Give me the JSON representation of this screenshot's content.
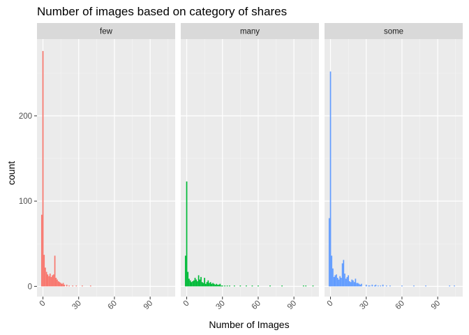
{
  "chart_data": {
    "type": "bar",
    "title": "Number of images based on category of shares",
    "xlabel": "Number of Images",
    "ylabel": "count",
    "xlim": [
      -5,
      111
    ],
    "ylim": [
      -12,
      290
    ],
    "x_ticks": [
      0,
      30,
      60,
      90
    ],
    "y_ticks": [
      0,
      100,
      200
    ],
    "x_tick_labels": [
      "0",
      "30",
      "60",
      "90"
    ],
    "y_tick_labels": [
      "0",
      "100",
      "200"
    ],
    "grid": true,
    "legend": "none",
    "facet_by": "category of shares",
    "bin_width": 1,
    "panels": [
      {
        "name": "few",
        "color": "#F8766D",
        "x": [
          -1,
          0,
          1,
          2,
          3,
          4,
          5,
          6,
          7,
          8,
          9,
          10,
          11,
          12,
          13,
          14,
          15,
          16,
          17,
          18,
          20,
          22,
          25,
          28,
          33,
          40
        ],
        "values": [
          84,
          276,
          37,
          22,
          17,
          14,
          12,
          15,
          11,
          13,
          14,
          36,
          10,
          8,
          6,
          5,
          4,
          3,
          4,
          2,
          2,
          1,
          1,
          1,
          1,
          1
        ]
      },
      {
        "name": "many",
        "color": "#00BA38",
        "x": [
          -1,
          0,
          1,
          2,
          3,
          4,
          5,
          6,
          7,
          8,
          9,
          10,
          11,
          12,
          13,
          14,
          15,
          16,
          17,
          18,
          19,
          20,
          21,
          22,
          23,
          24,
          25,
          26,
          27,
          28,
          29,
          30,
          32,
          34,
          36,
          40,
          45,
          50,
          55,
          60,
          70,
          80,
          98,
          100,
          106
        ],
        "values": [
          36,
          123,
          17,
          9,
          7,
          5,
          6,
          7,
          10,
          8,
          6,
          13,
          8,
          11,
          5,
          4,
          10,
          3,
          5,
          7,
          4,
          5,
          3,
          4,
          3,
          2,
          3,
          2,
          2,
          3,
          1,
          1,
          1,
          1,
          1,
          1,
          1,
          1,
          1,
          1,
          1,
          1,
          1,
          1,
          1
        ]
      },
      {
        "name": "some",
        "color": "#619CFF",
        "x": [
          -1,
          0,
          1,
          2,
          3,
          4,
          5,
          6,
          7,
          8,
          9,
          10,
          11,
          12,
          13,
          14,
          15,
          16,
          17,
          18,
          19,
          20,
          21,
          22,
          23,
          24,
          25,
          26,
          30,
          32,
          33,
          35,
          37,
          38,
          40,
          42,
          44,
          47,
          50,
          60,
          70,
          80,
          100,
          104
        ],
        "values": [
          80,
          252,
          36,
          21,
          11,
          13,
          14,
          10,
          8,
          12,
          10,
          27,
          31,
          15,
          9,
          11,
          13,
          6,
          5,
          8,
          7,
          5,
          9,
          4,
          4,
          3,
          2,
          3,
          2,
          1,
          1,
          2,
          1,
          2,
          1,
          1,
          2,
          1,
          1,
          1,
          1,
          1,
          1,
          1
        ]
      }
    ]
  }
}
